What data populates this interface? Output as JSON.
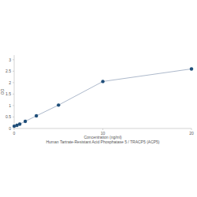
{
  "chart_data": {
    "type": "line",
    "title": "Human Tartrate-Resistant Acid Phosphatase 5 / TRACP5 (ACP5)",
    "x_label": "Concentration (ng/ml)",
    "y_label": "OD",
    "x": [
      0,
      0.3125,
      0.625,
      1.25,
      2.5,
      5,
      10,
      20
    ],
    "series": [
      {
        "name": null,
        "color": "#1f4e79",
        "marker": "circle",
        "line_style": "solid",
        "values": [
          0.1,
          0.14,
          0.19,
          0.31,
          0.55,
          1.02,
          2.05,
          2.6
        ]
      }
    ],
    "xlim": [
      0,
      20
    ],
    "xticks": [
      0,
      10,
      20
    ],
    "ylim": [
      0,
      3.2
    ],
    "yticks": [
      0,
      0.5,
      1,
      1.5,
      2,
      2.5,
      3
    ],
    "grid": false
  }
}
